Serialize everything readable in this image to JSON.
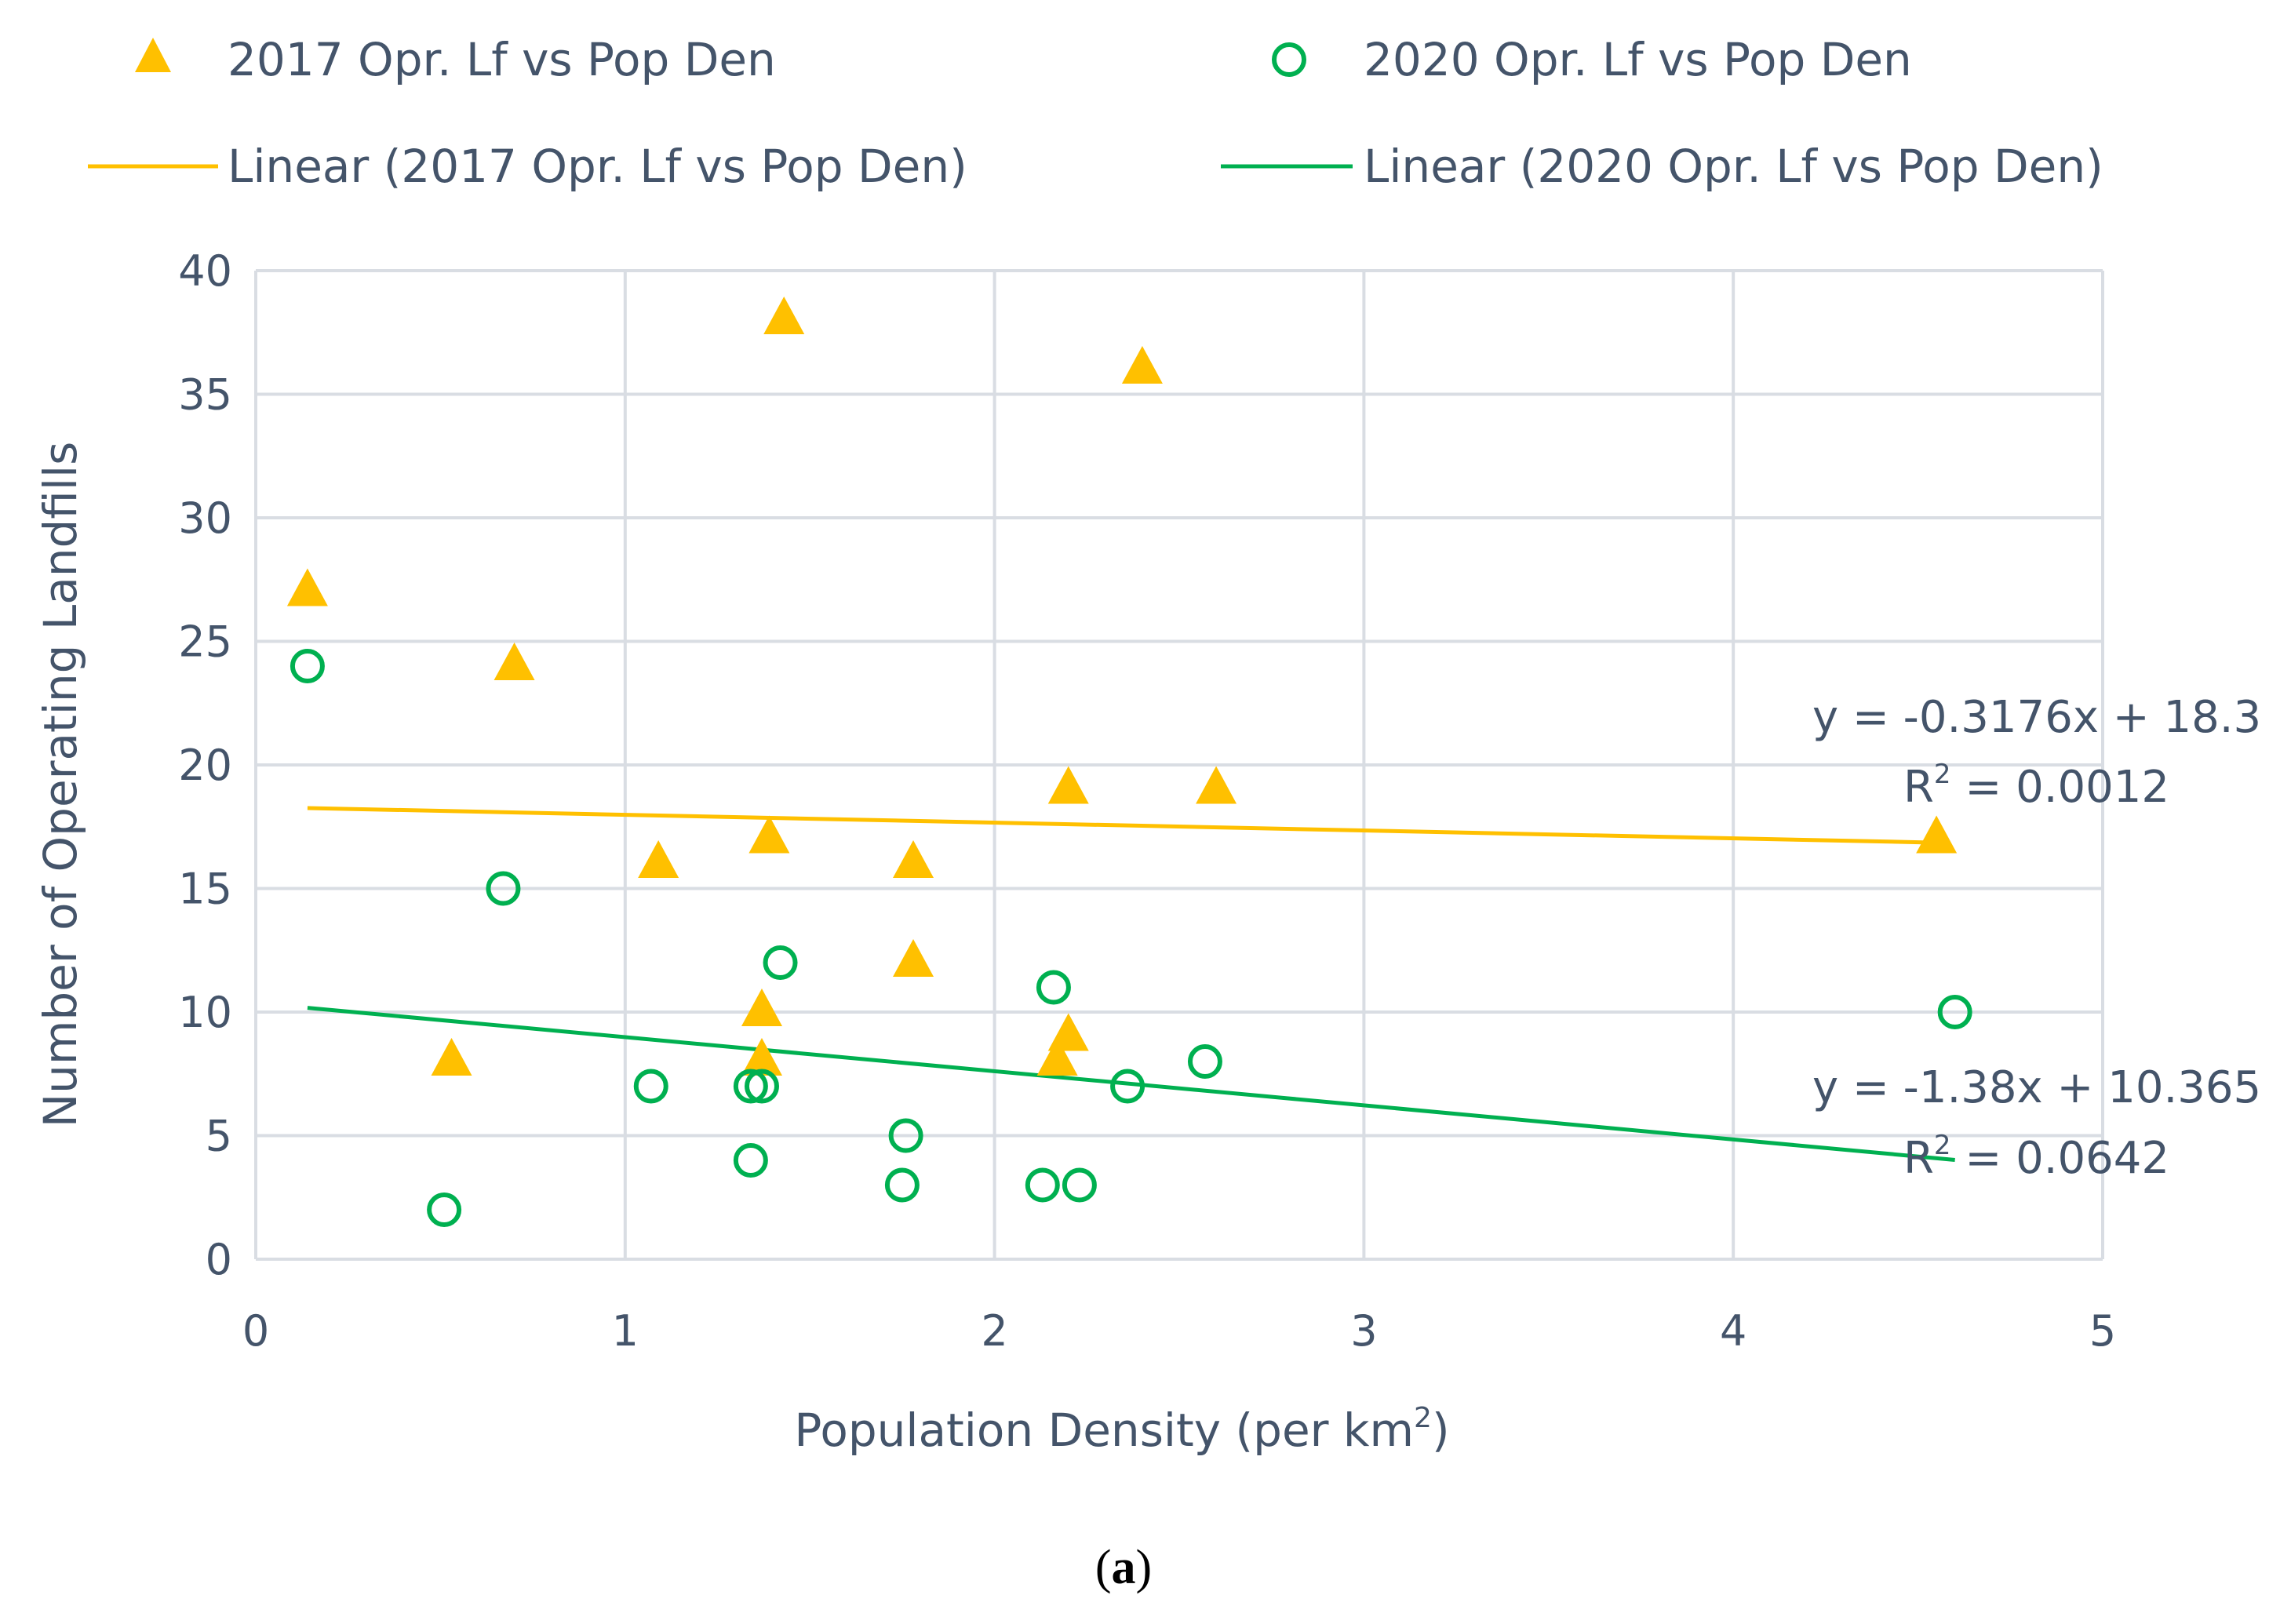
{
  "chart_data": {
    "type": "scatter",
    "title": "",
    "caption": "(a)",
    "caption_parts": {
      "open": "(",
      "letter": "a",
      "close": ")"
    },
    "xlabel": "Population Density (per km",
    "xlabel_sup": "2",
    "xlabel_close": ")",
    "ylabel": "Number of Operating Landfills",
    "xlim": [
      0,
      5
    ],
    "ylim": [
      0,
      40
    ],
    "xticks": [
      0,
      1,
      2,
      3,
      4,
      5
    ],
    "yticks": [
      0,
      5,
      10,
      15,
      20,
      25,
      30,
      35,
      40
    ],
    "grid": true,
    "legend_position": "top",
    "colors": {
      "series2017": "#ffc000",
      "series2020": "#00b050",
      "grid": "#d9dde3",
      "text": "#44546a"
    },
    "series": [
      {
        "name": "2017 Opr. Lf vs Pop Den",
        "marker": "triangle",
        "points": [
          [
            0.14,
            27
          ],
          [
            0.7,
            24
          ],
          [
            0.53,
            8
          ],
          [
            1.09,
            16
          ],
          [
            1.43,
            38
          ],
          [
            1.39,
            17
          ],
          [
            1.37,
            10
          ],
          [
            1.37,
            8
          ],
          [
            1.78,
            16
          ],
          [
            1.78,
            12
          ],
          [
            2.4,
            36
          ],
          [
            2.2,
            19
          ],
          [
            2.6,
            19
          ],
          [
            2.2,
            9
          ],
          [
            2.17,
            8
          ],
          [
            4.55,
            17
          ]
        ]
      },
      {
        "name": "2020 Opr. Lf vs Pop Den",
        "marker": "circle-open",
        "points": [
          [
            0.14,
            24
          ],
          [
            0.51,
            2
          ],
          [
            0.67,
            15
          ],
          [
            1.07,
            7
          ],
          [
            1.34,
            7
          ],
          [
            1.37,
            7
          ],
          [
            1.34,
            4
          ],
          [
            1.42,
            12
          ],
          [
            1.76,
            5
          ],
          [
            1.75,
            3
          ],
          [
            2.16,
            11
          ],
          [
            2.13,
            3
          ],
          [
            2.23,
            3
          ],
          [
            2.36,
            7
          ],
          [
            2.57,
            8
          ],
          [
            4.6,
            10
          ]
        ]
      }
    ],
    "trendlines": [
      {
        "name": "Linear (2017 Opr. Lf vs Pop Den)",
        "slope": -0.3176,
        "intercept": 18.3,
        "x_range": [
          0.14,
          4.55
        ],
        "equation": "y = -0.3176x + 18.3",
        "r2_label": "R",
        "r2_sup": "2",
        "r2_value": " = 0.0012"
      },
      {
        "name": "Linear (2020 Opr. Lf vs Pop Den)",
        "slope": -1.38,
        "intercept": 10.365,
        "x_range": [
          0.14,
          4.6
        ],
        "equation": "y = -1.38x + 10.365",
        "r2_label": "R",
        "r2_sup": "2",
        "r2_value": " = 0.0642"
      }
    ]
  }
}
